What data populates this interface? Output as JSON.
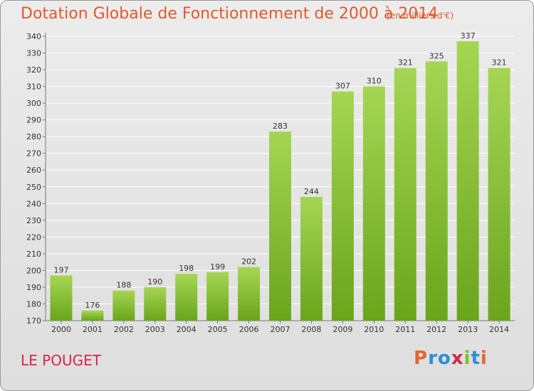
{
  "header": {
    "title": "Dotation Globale de Fonctionnement de 2000 à 2014",
    "subtitle": "(en milliers d'€)"
  },
  "footer": {
    "commune": "LE POUGET",
    "logo_text": "Proxiti",
    "logo_colors": [
      "#e8662a",
      "#2a8fd8",
      "#2a8fd8",
      "#d8254c",
      "#7fbf2a",
      "#2a8fd8",
      "#e8662a"
    ]
  },
  "colors": {
    "bar_light": "#a5d653",
    "bar_dark": "#6aa51c",
    "grid": "#ffffff",
    "axis_text": "#333333"
  },
  "chart_data": {
    "type": "bar",
    "title": "Dotation Globale de Fonctionnement de 2000 à 2014",
    "subtitle": "(en milliers d'€)",
    "categories": [
      "2000",
      "2001",
      "2002",
      "2003",
      "2004",
      "2005",
      "2006",
      "2007",
      "2008",
      "2009",
      "2010",
      "2011",
      "2012",
      "2013",
      "2014"
    ],
    "values": [
      197,
      176,
      188,
      190,
      198,
      199,
      202,
      283,
      244,
      307,
      310,
      321,
      325,
      337,
      321
    ],
    "ylim": [
      170,
      340
    ],
    "yticks": [
      170,
      180,
      190,
      200,
      210,
      220,
      230,
      240,
      250,
      260,
      270,
      280,
      290,
      300,
      310,
      320,
      330,
      340
    ],
    "grid": true,
    "data_labels": true
  }
}
